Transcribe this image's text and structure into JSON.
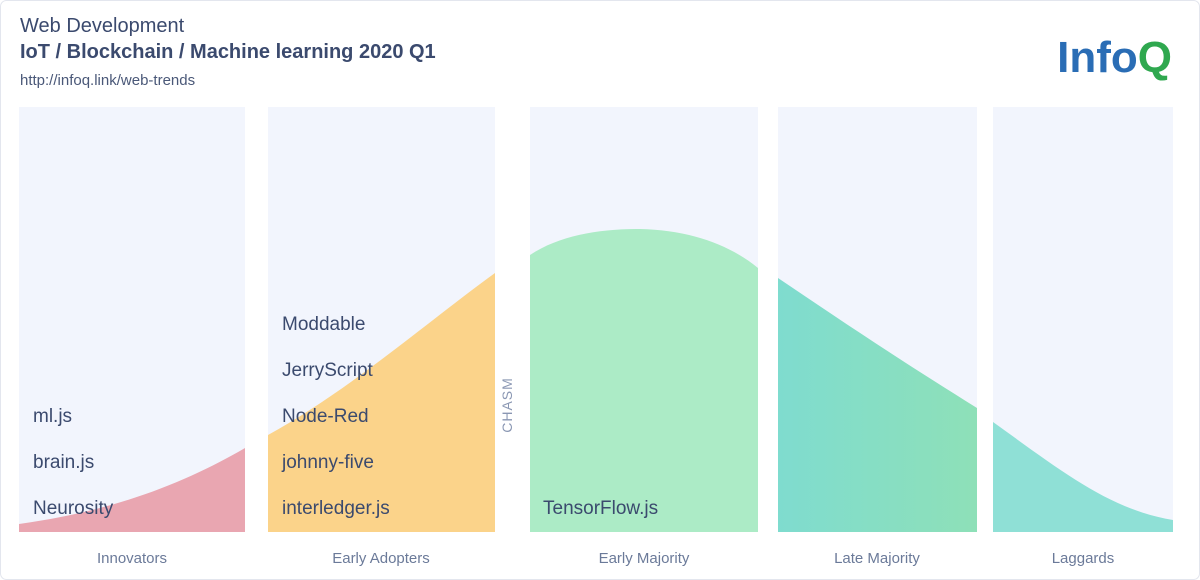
{
  "header": {
    "title": "Web Development",
    "subtitle": "IoT / Blockchain / Machine learning 2020 Q1",
    "url": "http://infoq.link/web-trends",
    "logo": [
      "Info",
      "Q"
    ]
  },
  "chasm": "CHASM",
  "columns": [
    {
      "label": "Innovators",
      "items": [
        "ml.js",
        "brain.js",
        "Neurosity"
      ]
    },
    {
      "label": "Early Adopters",
      "items": [
        "Moddable",
        "JerryScript",
        "Node-Red",
        "johnny-five",
        "interledger.js"
      ]
    },
    {
      "label": "Early Majority",
      "items": [
        "TensorFlow.js"
      ]
    },
    {
      "label": "Late Majority",
      "items": []
    },
    {
      "label": "Laggards",
      "items": []
    }
  ]
}
